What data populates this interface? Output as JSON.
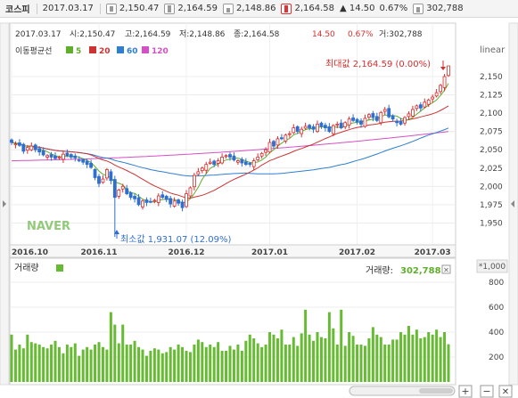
{
  "topbar": {
    "name": "코스피",
    "date": "2017.03.17",
    "open": "2,150.47",
    "high": "2,164.59",
    "low": "2,148.86",
    "close": "2,164.58",
    "change": "▲ 14.50",
    "change_pct": "0.67%",
    "volume": "302,788"
  },
  "infoline": {
    "date": "2017.03.17",
    "open": "시:2,150.47",
    "high": "고:2,164.59",
    "low": "저:2,148.86",
    "close": "종:2,164.58",
    "change": "14.50",
    "change_pct": "0.67%",
    "volume": "거:302,788"
  },
  "legend": {
    "title": "이동평균선",
    "items": [
      {
        "label": "5",
        "color": "#5fae2c"
      },
      {
        "label": "20",
        "color": "#cc3333"
      },
      {
        "label": "60",
        "color": "#2f7fd1"
      },
      {
        "label": "120",
        "color": "#d64fc6"
      }
    ]
  },
  "scale_label": "linear",
  "watermark": "NAVER",
  "annotations": {
    "max_label": "최대값 2,164.59 (0.00%)",
    "min_label": "최소값 1,931.07 (12.09%)"
  },
  "volume_panel": {
    "title": "거래량",
    "value_label": "거래량:",
    "value": "302,788",
    "multiplier": "*1,000"
  },
  "buttons": {
    "zoom_in": "+",
    "zoom_out": "−",
    "close": "✕"
  },
  "colors": {
    "up": "#d62e2e",
    "down": "#2f6fcf",
    "ma5": "#5fae2c",
    "ma20": "#cc3333",
    "ma60": "#2f7fd1",
    "ma120": "#d64fc6",
    "volume": "#66bb33"
  },
  "chart_data": [
    {
      "type": "candlestick",
      "title": "코스피",
      "x_ticks": [
        "2016.10",
        "2016.11",
        "2016.12",
        "2017.01",
        "2017.02",
        "2017.03"
      ],
      "y_ticks": [
        1950,
        1975,
        2000,
        2025,
        2050,
        2075,
        2100,
        2125,
        2150
      ],
      "ylim": [
        1925,
        2175
      ],
      "close_series": [
        2060,
        2058,
        2056,
        2048,
        2053,
        2055,
        2050,
        2047,
        2043,
        2042,
        2040,
        2038,
        2040,
        2044,
        2042,
        2040,
        2039,
        2035,
        2033,
        2030,
        2026,
        2012,
        2004,
        2010,
        2023,
        2008,
        1985,
        1995,
        2000,
        1990,
        1985,
        1983,
        1975,
        1980,
        1978,
        1979,
        1981,
        1987,
        1985,
        1982,
        1976,
        1980,
        1977,
        1971,
        1990,
        1998,
        2015,
        2020,
        2025,
        2030,
        2033,
        2030,
        2035,
        2040,
        2042,
        2040,
        2036,
        2035,
        2032,
        2030,
        2030,
        2035,
        2040,
        2045,
        2050,
        2060,
        2055,
        2065,
        2065,
        2070,
        2072,
        2080,
        2075,
        2078,
        2082,
        2080,
        2078,
        2085,
        2082,
        2080,
        2075,
        2083,
        2085,
        2080,
        2087,
        2092,
        2090,
        2088,
        2085,
        2093,
        2098,
        2094,
        2090,
        2101,
        2105,
        2095,
        2092,
        2087,
        2085,
        2094,
        2099,
        2105,
        2110,
        2107,
        2115,
        2118,
        2122,
        2128,
        2138,
        2150,
        2164.58
      ],
      "max": {
        "value": 2164.59,
        "pct": "0.00%"
      },
      "min": {
        "value": 1931.07,
        "pct": "12.09%"
      },
      "moving_averages": [
        "5",
        "20",
        "60",
        "120"
      ]
    },
    {
      "type": "bar",
      "title": "거래량",
      "y_ticks": [
        200,
        400,
        600,
        800
      ],
      "ylim": [
        0,
        900
      ],
      "unit": "*1,000",
      "values": [
        380,
        260,
        300,
        270,
        380,
        320,
        310,
        300,
        280,
        270,
        300,
        330,
        280,
        230,
        300,
        280,
        310,
        210,
        260,
        280,
        260,
        300,
        320,
        280,
        260,
        560,
        460,
        310,
        460,
        300,
        300,
        330,
        280,
        260,
        210,
        250,
        270,
        260,
        230,
        240,
        280,
        260,
        300,
        280,
        250,
        240,
        300,
        340,
        320,
        280,
        300,
        280,
        320,
        250,
        250,
        290,
        260,
        300,
        250,
        330,
        380,
        350,
        310,
        280,
        300,
        400,
        380,
        350,
        420,
        300,
        300,
        360,
        290,
        390,
        580,
        380,
        330,
        400,
        360,
        350,
        560,
        430,
        300,
        580,
        290,
        400,
        370,
        300,
        300,
        290,
        350,
        440,
        380,
        360,
        300,
        300,
        340,
        340,
        400,
        380,
        450,
        380,
        420,
        350,
        360,
        400,
        380,
        420,
        360,
        400,
        302.788
      ]
    }
  ]
}
